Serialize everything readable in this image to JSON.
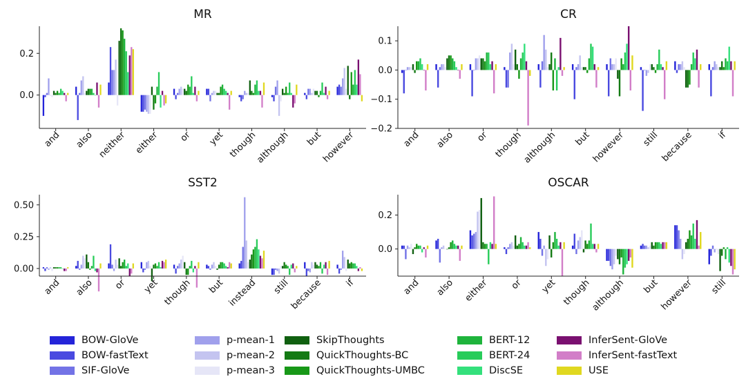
{
  "series": [
    {
      "name": "BOW-GloVe",
      "color": "#2424d9"
    },
    {
      "name": "BOW-fastText",
      "color": "#4a4ae0"
    },
    {
      "name": "SIF-GloVe",
      "color": "#7373e6"
    },
    {
      "name": "p-mean-1",
      "color": "#a0a0ec"
    },
    {
      "name": "p-mean-2",
      "color": "#c4c4f0"
    },
    {
      "name": "p-mean-3",
      "color": "#e6e6f7"
    },
    {
      "name": "SkipThoughts",
      "color": "#106010"
    },
    {
      "name": "QuickThoughts-BC",
      "color": "#147a14"
    },
    {
      "name": "QuickThoughts-UMBC",
      "color": "#189818"
    },
    {
      "name": "BERT-12",
      "color": "#1eb43c"
    },
    {
      "name": "BERT-24",
      "color": "#28cc5a"
    },
    {
      "name": "DiscSE",
      "color": "#34e07c"
    },
    {
      "name": "InferSent-GloVe",
      "color": "#7a1070"
    },
    {
      "name": "InferSent-fastText",
      "color": "#d27ec8"
    },
    {
      "name": "USE",
      "color": "#e0d820"
    }
  ],
  "chart_data": [
    {
      "type": "bar",
      "title": "MR",
      "ylim": [
        -0.16,
        0.33
      ],
      "yticks": [
        0.0,
        0.2
      ],
      "ytick_labels": [
        "0.0",
        "0.2"
      ],
      "categories": [
        "and",
        "also",
        "neither",
        "either",
        "or",
        "yet",
        "though",
        "although",
        "but",
        "however"
      ],
      "values": [
        [
          -0.1,
          -0.01,
          0.01,
          0.08,
          0.0,
          -0.01,
          0.02,
          0.01,
          0.02,
          0.01,
          0.03,
          0.02,
          0.01,
          -0.03,
          0.01
        ],
        [
          0.04,
          -0.12,
          0.01,
          0.07,
          0.09,
          0.01,
          0.02,
          0.03,
          0.03,
          0.03,
          0.01,
          0.0,
          0.06,
          -0.06,
          0.05
        ],
        [
          0.06,
          0.23,
          0.12,
          0.12,
          0.17,
          -0.05,
          0.26,
          0.32,
          0.31,
          0.27,
          0.21,
          0.11,
          0.19,
          0.23,
          0.22
        ],
        [
          -0.08,
          -0.08,
          -0.07,
          -0.08,
          -0.09,
          -0.09,
          0.04,
          -0.07,
          -0.04,
          0.04,
          0.11,
          -0.06,
          0.02,
          -0.05,
          -0.04
        ],
        [
          0.03,
          -0.02,
          0.01,
          0.03,
          0.04,
          0.03,
          0.03,
          0.02,
          0.05,
          0.04,
          0.09,
          0.01,
          0.04,
          -0.03,
          0.02
        ],
        [
          0.03,
          0.03,
          -0.03,
          0.01,
          0.02,
          0.02,
          0.01,
          0.01,
          0.04,
          0.05,
          0.03,
          0.02,
          0.01,
          -0.07,
          0.02
        ],
        [
          -0.01,
          -0.03,
          -0.02,
          0.02,
          0.01,
          0.01,
          0.07,
          0.02,
          0.01,
          0.05,
          0.07,
          0.02,
          0.02,
          -0.06,
          0.06
        ],
        [
          -0.01,
          -0.03,
          0.04,
          0.07,
          -0.1,
          -0.03,
          0.03,
          0.01,
          0.04,
          0.01,
          0.06,
          0.01,
          -0.06,
          -0.04,
          0.05
        ],
        [
          0.01,
          -0.02,
          0.03,
          0.03,
          0.01,
          0.03,
          0.02,
          0.02,
          -0.01,
          0.02,
          0.06,
          0.01,
          0.04,
          -0.02,
          0.02
        ],
        [
          0.04,
          0.05,
          0.04,
          0.08,
          0.13,
          0.03,
          0.14,
          -0.02,
          0.11,
          0.05,
          0.12,
          0.05,
          0.17,
          0.1,
          -0.03
        ]
      ]
    },
    {
      "type": "bar",
      "title": "CR",
      "ylim": [
        -0.2,
        0.15
      ],
      "yticks": [
        -0.2,
        -0.1,
        0.0,
        0.1
      ],
      "ytick_labels": [
        "−0.2",
        "−0.1",
        "0.0",
        "0.1"
      ],
      "categories": [
        "and",
        "also",
        "or",
        "though",
        "although",
        "but",
        "however",
        "still",
        "because",
        "if"
      ],
      "values": [
        [
          -0.01,
          -0.08,
          0.0,
          0.01,
          0.01,
          0.01,
          0.02,
          -0.01,
          0.03,
          0.03,
          0.04,
          0.02,
          0.0,
          -0.07,
          0.02
        ],
        [
          0.02,
          -0.06,
          0.01,
          0.02,
          0.02,
          0.01,
          0.04,
          0.05,
          0.05,
          0.04,
          0.03,
          0.01,
          0.0,
          -0.03,
          0.02
        ],
        [
          0.02,
          -0.09,
          0.0,
          0.04,
          0.04,
          0.05,
          0.04,
          0.04,
          0.03,
          0.06,
          0.06,
          0.02,
          0.03,
          -0.08,
          0.02
        ],
        [
          0.01,
          -0.06,
          -0.06,
          0.06,
          0.09,
          0.02,
          0.07,
          0.02,
          -0.03,
          0.04,
          0.06,
          0.09,
          0.03,
          -0.19,
          -0.02
        ],
        [
          0.02,
          -0.06,
          0.03,
          0.12,
          0.07,
          0.01,
          0.02,
          0.06,
          -0.07,
          0.04,
          -0.07,
          0.01,
          0.11,
          -0.02,
          0.01
        ],
        [
          0.02,
          -0.1,
          0.01,
          0.02,
          0.05,
          0.01,
          0.01,
          0.01,
          -0.01,
          0.04,
          0.09,
          0.08,
          0.02,
          -0.06,
          0.01
        ],
        [
          0.02,
          -0.09,
          0.04,
          0.02,
          0.02,
          0.04,
          -0.03,
          -0.09,
          0.04,
          0.02,
          0.06,
          0.09,
          0.15,
          -0.07,
          0.05
        ],
        [
          0.01,
          -0.14,
          0.0,
          -0.02,
          -0.01,
          0.02,
          0.02,
          0.01,
          -0.01,
          0.02,
          0.07,
          0.02,
          0.01,
          -0.1,
          0.03
        ],
        [
          0.03,
          -0.01,
          0.02,
          0.02,
          0.03,
          0.01,
          -0.06,
          -0.06,
          -0.05,
          0.02,
          0.06,
          0.04,
          0.07,
          -0.06,
          0.02
        ],
        [
          0.02,
          -0.09,
          0.01,
          0.03,
          0.02,
          0.01,
          0.01,
          0.03,
          0.01,
          0.04,
          0.03,
          0.08,
          0.03,
          -0.09,
          0.03
        ]
      ]
    },
    {
      "type": "bar",
      "title": "SST2",
      "ylim": [
        -0.06,
        0.58
      ],
      "yticks": [
        0.0,
        0.25,
        0.5
      ],
      "ytick_labels": [
        "0.00",
        "0.25",
        "0.50"
      ],
      "categories": [
        "and",
        "also",
        "or",
        "yet",
        "though",
        "but",
        "instead",
        "still",
        "because",
        "if"
      ],
      "values": [
        [
          0.01,
          -0.02,
          0.01,
          -0.01,
          0.01,
          -0.02,
          0.01,
          0.01,
          0.01,
          0.01,
          0.01,
          0.0,
          -0.02,
          -0.02,
          0.01
        ],
        [
          0.02,
          0.06,
          -0.01,
          0.03,
          0.1,
          0.08,
          0.11,
          0.05,
          -0.01,
          0.02,
          0.1,
          -0.02,
          -0.03,
          -0.18,
          0.04
        ],
        [
          0.04,
          0.19,
          0.03,
          -0.02,
          0.07,
          0.03,
          0.08,
          0.02,
          0.05,
          0.07,
          0.02,
          0.04,
          -0.06,
          -0.04,
          0.04
        ],
        [
          0.05,
          -0.03,
          -0.01,
          0.05,
          0.06,
          0.02,
          -0.1,
          0.03,
          0.04,
          0.02,
          0.05,
          0.01,
          0.06,
          0.05,
          0.07
        ],
        [
          0.03,
          -0.04,
          0.02,
          0.04,
          0.07,
          0.1,
          0.05,
          -0.05,
          -0.05,
          0.02,
          0.06,
          -0.03,
          0.02,
          -0.15,
          0.05
        ],
        [
          0.03,
          0.02,
          -0.01,
          0.03,
          0.05,
          0.02,
          -0.01,
          0.03,
          0.05,
          0.05,
          0.04,
          0.02,
          0.01,
          0.05,
          0.04
        ],
        [
          0.04,
          0.06,
          0.17,
          0.56,
          0.22,
          0.05,
          0.07,
          0.11,
          0.15,
          0.17,
          0.23,
          0.15,
          0.1,
          0.08,
          0.14
        ],
        [
          -0.05,
          -0.05,
          -0.01,
          -0.02,
          -0.04,
          0.02,
          0.02,
          0.05,
          0.03,
          0.02,
          -0.05,
          0.03,
          0.04,
          -0.03,
          0.02
        ],
        [
          0.05,
          -0.06,
          -0.02,
          -0.03,
          0.05,
          0.03,
          0.05,
          0.03,
          0.02,
          0.05,
          -0.04,
          0.03,
          0.05,
          -0.05,
          0.06
        ],
        [
          0.03,
          -0.04,
          -0.01,
          0.14,
          0.09,
          -0.02,
          0.07,
          0.04,
          0.05,
          0.04,
          0.04,
          0.02,
          -0.02,
          0.01,
          -0.02
        ]
      ]
    },
    {
      "type": "bar",
      "title": "OSCAR",
      "ylim": [
        -0.16,
        0.32
      ],
      "yticks": [
        0.0,
        0.2
      ],
      "ytick_labels": [
        "0.0",
        "0.2"
      ],
      "categories": [
        "and",
        "also",
        "either",
        "or",
        "yet",
        "though",
        "although",
        "but",
        "however",
        "still"
      ],
      "values": [
        [
          0.02,
          0.02,
          -0.06,
          0.02,
          0.01,
          0.03,
          -0.03,
          0.01,
          0.03,
          0.02,
          0.02,
          -0.02,
          0.01,
          -0.05,
          0.02
        ],
        [
          0.05,
          0.06,
          -0.08,
          0.01,
          0.02,
          0.0,
          0.0,
          0.01,
          0.04,
          0.05,
          0.03,
          0.02,
          0.02,
          -0.07,
          0.02
        ],
        [
          0.11,
          0.08,
          0.09,
          0.1,
          0.22,
          0.23,
          0.3,
          0.04,
          0.03,
          0.03,
          -0.09,
          0.04,
          0.03,
          0.31,
          0.03
        ],
        [
          0.01,
          -0.03,
          0.01,
          0.03,
          0.04,
          0.02,
          0.08,
          0.02,
          0.03,
          0.07,
          0.04,
          0.02,
          0.02,
          0.04,
          0.01
        ],
        [
          0.1,
          0.06,
          -0.04,
          0.02,
          -0.1,
          -0.06,
          0.08,
          -0.05,
          0.04,
          0.1,
          0.06,
          0.02,
          0.04,
          -0.16,
          0.04
        ],
        [
          0.02,
          0.09,
          -0.03,
          0.05,
          0.07,
          0.11,
          -0.02,
          0.05,
          0.03,
          0.05,
          0.15,
          0.03,
          0.03,
          -0.02,
          0.03
        ],
        [
          -0.07,
          -0.07,
          -0.1,
          -0.12,
          -0.09,
          -0.04,
          -0.06,
          -0.09,
          -0.05,
          -0.15,
          -0.11,
          -0.09,
          -0.07,
          -0.05,
          -0.11
        ],
        [
          0.02,
          0.03,
          0.02,
          0.02,
          0.01,
          0.02,
          0.04,
          0.02,
          0.04,
          0.04,
          0.04,
          0.03,
          0.04,
          0.04,
          0.04
        ],
        [
          0.14,
          0.14,
          0.11,
          0.06,
          -0.06,
          -0.03,
          0.04,
          0.06,
          0.11,
          0.08,
          0.15,
          0.06,
          0.17,
          0.02,
          0.1
        ],
        [
          -0.09,
          -0.04,
          0.02,
          -0.02,
          0.0,
          -0.03,
          -0.13,
          -0.04,
          0.01,
          -0.06,
          0.01,
          -0.08,
          -0.1,
          -0.15,
          -0.12
        ]
      ]
    }
  ]
}
